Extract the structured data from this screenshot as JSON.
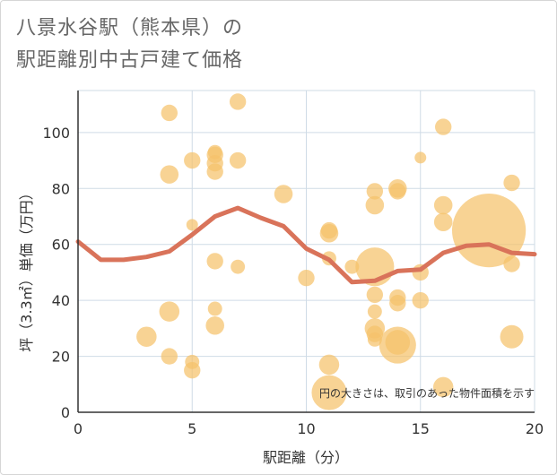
{
  "title_line1": "八景水谷駅（熊本県）の",
  "title_line2": "駅距離別中古戸建て価格",
  "chart_data": {
    "type": "scatter",
    "xlabel": "駅距離（分）",
    "ylabel": "坪（3.3㎡）単価（万円）",
    "xlim": [
      0,
      20
    ],
    "ylim": [
      0,
      115
    ],
    "x_ticks": [
      0,
      5,
      10,
      15,
      20
    ],
    "y_ticks": [
      0,
      20,
      40,
      60,
      80,
      100
    ],
    "grid": true,
    "annotation": "円の大きさは、取引のあった物件面積を示す",
    "colors": {
      "points": "#f5c26b",
      "trend": "#d9735a",
      "grid": "#cfdbe6"
    },
    "points": [
      {
        "x": 3,
        "y": 27,
        "size": 3
      },
      {
        "x": 4,
        "y": 107,
        "size": 2
      },
      {
        "x": 4,
        "y": 85,
        "size": 2.5
      },
      {
        "x": 4,
        "y": 36,
        "size": 3
      },
      {
        "x": 4,
        "y": 20,
        "size": 2
      },
      {
        "x": 5,
        "y": 90,
        "size": 2
      },
      {
        "x": 5,
        "y": 67,
        "size": 1
      },
      {
        "x": 5,
        "y": 18,
        "size": 1.5
      },
      {
        "x": 5,
        "y": 15,
        "size": 2
      },
      {
        "x": 6,
        "y": 93,
        "size": 1.5
      },
      {
        "x": 6,
        "y": 92,
        "size": 2
      },
      {
        "x": 6,
        "y": 89,
        "size": 2
      },
      {
        "x": 6,
        "y": 86,
        "size": 2
      },
      {
        "x": 6,
        "y": 54,
        "size": 2
      },
      {
        "x": 6,
        "y": 37,
        "size": 1.5
      },
      {
        "x": 6,
        "y": 31,
        "size": 2.5
      },
      {
        "x": 7,
        "y": 111,
        "size": 2
      },
      {
        "x": 7,
        "y": 90,
        "size": 2
      },
      {
        "x": 7,
        "y": 52,
        "size": 1.5
      },
      {
        "x": 9,
        "y": 78,
        "size": 2.5
      },
      {
        "x": 10,
        "y": 48,
        "size": 2
      },
      {
        "x": 11,
        "y": 65,
        "size": 2
      },
      {
        "x": 11,
        "y": 64,
        "size": 2.5
      },
      {
        "x": 11,
        "y": 55,
        "size": 1.5
      },
      {
        "x": 11,
        "y": 17,
        "size": 3
      },
      {
        "x": 11,
        "y": 7,
        "size": 9
      },
      {
        "x": 12,
        "y": 52,
        "size": 1.5
      },
      {
        "x": 13,
        "y": 79,
        "size": 2
      },
      {
        "x": 13,
        "y": 74,
        "size": 2.5
      },
      {
        "x": 13,
        "y": 52,
        "size": 11
      },
      {
        "x": 13,
        "y": 42,
        "size": 2
      },
      {
        "x": 13,
        "y": 36,
        "size": 1.5
      },
      {
        "x": 13,
        "y": 30,
        "size": 3
      },
      {
        "x": 13,
        "y": 28,
        "size": 2
      },
      {
        "x": 13,
        "y": 26,
        "size": 1.5
      },
      {
        "x": 14,
        "y": 80,
        "size": 2.5
      },
      {
        "x": 14,
        "y": 79,
        "size": 2
      },
      {
        "x": 14,
        "y": 41,
        "size": 2
      },
      {
        "x": 14,
        "y": 39,
        "size": 2
      },
      {
        "x": 14,
        "y": 25,
        "size": 4.5
      },
      {
        "x": 14,
        "y": 24,
        "size": 10
      },
      {
        "x": 15,
        "y": 91,
        "size": 1
      },
      {
        "x": 15,
        "y": 50,
        "size": 2
      },
      {
        "x": 15,
        "y": 40,
        "size": 2
      },
      {
        "x": 16,
        "y": 102,
        "size": 2
      },
      {
        "x": 16,
        "y": 74,
        "size": 2.5
      },
      {
        "x": 16,
        "y": 68,
        "size": 2.5
      },
      {
        "x": 16,
        "y": 9,
        "size": 3
      },
      {
        "x": 18,
        "y": 65,
        "size": 40
      },
      {
        "x": 19,
        "y": 82,
        "size": 2
      },
      {
        "x": 19,
        "y": 53,
        "size": 2
      },
      {
        "x": 19,
        "y": 27,
        "size": 4
      }
    ],
    "trend": {
      "x": [
        0,
        1,
        2,
        3,
        4,
        5,
        6,
        7,
        8,
        9,
        10,
        11,
        12,
        13,
        14,
        15,
        16,
        17,
        18,
        19,
        20
      ],
      "y": [
        61,
        54.5,
        54.5,
        55.5,
        57.5,
        63.5,
        70,
        73,
        69.5,
        66.5,
        58.5,
        54.5,
        46.5,
        47,
        50.5,
        51,
        57,
        59.5,
        60,
        57,
        56.5
      ]
    }
  }
}
